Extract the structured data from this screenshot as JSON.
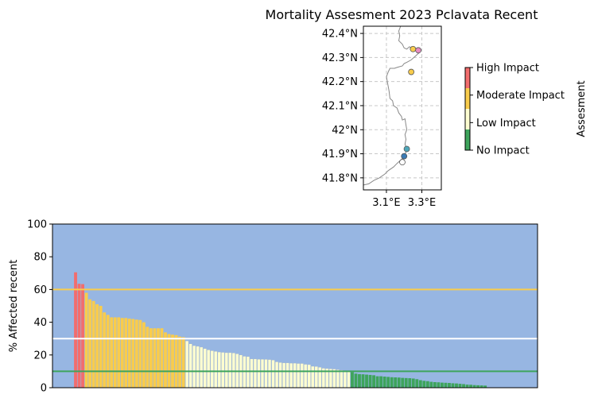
{
  "chart_data": [
    {
      "type": "scatter",
      "title": "Mortality Assesment 2023 Pclavata Recent",
      "xlim": [
        2.97,
        3.41
      ],
      "ylim": [
        41.75,
        42.43
      ],
      "xticks": [
        {
          "v": 3.1,
          "label": "3.1°E"
        },
        {
          "v": 3.3,
          "label": "3.3°E"
        }
      ],
      "yticks": [
        {
          "v": 41.8,
          "label": "41.8°N"
        },
        {
          "v": 41.9,
          "label": "41.9°N"
        },
        {
          "v": 42.0,
          "label": "42°N"
        },
        {
          "v": 42.1,
          "label": "42.1°N"
        },
        {
          "v": 42.2,
          "label": "42.2°N"
        },
        {
          "v": 42.3,
          "label": "42.3°N"
        },
        {
          "v": 42.4,
          "label": "42.4°N"
        }
      ],
      "grid": true,
      "coastline": [
        [
          3.18,
          42.43
        ],
        [
          3.17,
          42.41
        ],
        [
          3.175,
          42.39
        ],
        [
          3.17,
          42.37
        ],
        [
          3.19,
          42.355
        ],
        [
          3.2,
          42.34
        ],
        [
          3.215,
          42.335
        ],
        [
          3.23,
          42.345
        ],
        [
          3.255,
          42.335
        ],
        [
          3.275,
          42.33
        ],
        [
          3.285,
          42.32
        ],
        [
          3.27,
          42.31
        ],
        [
          3.255,
          42.3
        ],
        [
          3.24,
          42.29
        ],
        [
          3.215,
          42.28
        ],
        [
          3.2,
          42.275
        ],
        [
          3.19,
          42.265
        ],
        [
          3.165,
          42.26
        ],
        [
          3.145,
          42.255
        ],
        [
          3.12,
          42.255
        ],
        [
          3.11,
          42.24
        ],
        [
          3.1,
          42.22
        ],
        [
          3.105,
          42.2
        ],
        [
          3.11,
          42.18
        ],
        [
          3.115,
          42.16
        ],
        [
          3.12,
          42.13
        ],
        [
          3.135,
          42.12
        ],
        [
          3.14,
          42.1
        ],
        [
          3.16,
          42.09
        ],
        [
          3.17,
          42.07
        ],
        [
          3.185,
          42.055
        ],
        [
          3.19,
          42.04
        ],
        [
          3.205,
          42.045
        ],
        [
          3.21,
          42.02
        ],
        [
          3.215,
          42.0
        ],
        [
          3.205,
          41.98
        ],
        [
          3.21,
          41.96
        ],
        [
          3.205,
          41.94
        ],
        [
          3.215,
          41.92
        ],
        [
          3.21,
          41.905
        ],
        [
          3.195,
          41.895
        ],
        [
          3.19,
          41.88
        ],
        [
          3.175,
          41.87
        ],
        [
          3.16,
          41.86
        ],
        [
          3.14,
          41.845
        ],
        [
          3.11,
          41.83
        ],
        [
          3.09,
          41.815
        ],
        [
          3.06,
          41.8
        ],
        [
          3.03,
          41.79
        ],
        [
          3.0,
          41.775
        ],
        [
          2.97,
          41.77
        ]
      ],
      "points": [
        {
          "x": 3.28,
          "y": 42.33,
          "color": "#e88cc2"
        },
        {
          "x": 3.25,
          "y": 42.335,
          "color": "#f9cc4c"
        },
        {
          "x": 3.24,
          "y": 42.24,
          "color": "#f9cc4c"
        },
        {
          "x": 3.215,
          "y": 41.92,
          "color": "#4da6b8"
        },
        {
          "x": 3.2,
          "y": 41.89,
          "color": "#3b7ab3"
        },
        {
          "x": 3.19,
          "y": 41.865,
          "color": "#ffffff"
        }
      ]
    },
    {
      "type": "colorbar",
      "label": "Assesment",
      "segments": [
        {
          "label": "No Impact",
          "color": "#3ea45c"
        },
        {
          "label": "Low Impact",
          "color": "#fdfdd0"
        },
        {
          "label": "Moderate Impact",
          "color": "#f9cc4c"
        },
        {
          "label": "High Impact",
          "color": "#f26d6d"
        }
      ]
    },
    {
      "type": "bar",
      "ylabel": "% Affected recent",
      "ylim": [
        0,
        100
      ],
      "yticks": [
        0,
        20,
        40,
        60,
        80,
        100
      ],
      "xlim": [
        0,
        135
      ],
      "background": "#97b6e2",
      "thresholds": [
        {
          "value": 60,
          "color": "#f9cc4c"
        },
        {
          "value": 30,
          "color": "#ffffff"
        },
        {
          "value": 10,
          "color": "#3ea45c"
        }
      ],
      "values": [
        70.5,
        63.5,
        63.3,
        58,
        54,
        53,
        51,
        50,
        46,
        44.5,
        43,
        43,
        43,
        42.6,
        42.6,
        42.2,
        42,
        41.6,
        41.4,
        40,
        37.2,
        36.3,
        36.3,
        36.3,
        36.3,
        33.8,
        32.8,
        32.4,
        32.1,
        31.2,
        30.9,
        28.6,
        26.8,
        25.7,
        25.3,
        24.8,
        23.9,
        23.1,
        22.6,
        22.2,
        21.8,
        21.6,
        21.4,
        21.4,
        21.2,
        20.7,
        20,
        19.2,
        19,
        17.6,
        17.6,
        17.4,
        17.4,
        17.3,
        17.2,
        16.9,
        15.8,
        15.4,
        15.2,
        15.2,
        15,
        15,
        14.8,
        14.8,
        14.3,
        14.1,
        13.1,
        13,
        12.5,
        11.9,
        11.7,
        11.5,
        11.4,
        11,
        10.7,
        10.3,
        10,
        9.5,
        8.6,
        8.3,
        8.2,
        8,
        7.8,
        7.6,
        7,
        7,
        6.8,
        6.6,
        6.4,
        6.3,
        6.2,
        6,
        5.9,
        5.8,
        5.6,
        5.2,
        4.6,
        4.2,
        4,
        3.6,
        3.4,
        3.3,
        3.1,
        3,
        2.9,
        2.7,
        2.6,
        2.4,
        2.2,
        1.9,
        1.8,
        1.6,
        1.5,
        1.4,
        1.3,
        0,
        0,
        0,
        0,
        0,
        0,
        0,
        0,
        0,
        0,
        0,
        0,
        0,
        0,
        0,
        0,
        0,
        0,
        0
      ],
      "colors": {
        "high": "#f26d6d",
        "moderate": "#f9cc4c",
        "low": "#fdfdd0",
        "none": "#3ea45c",
        "edge": "#a0b4d0"
      }
    }
  ]
}
